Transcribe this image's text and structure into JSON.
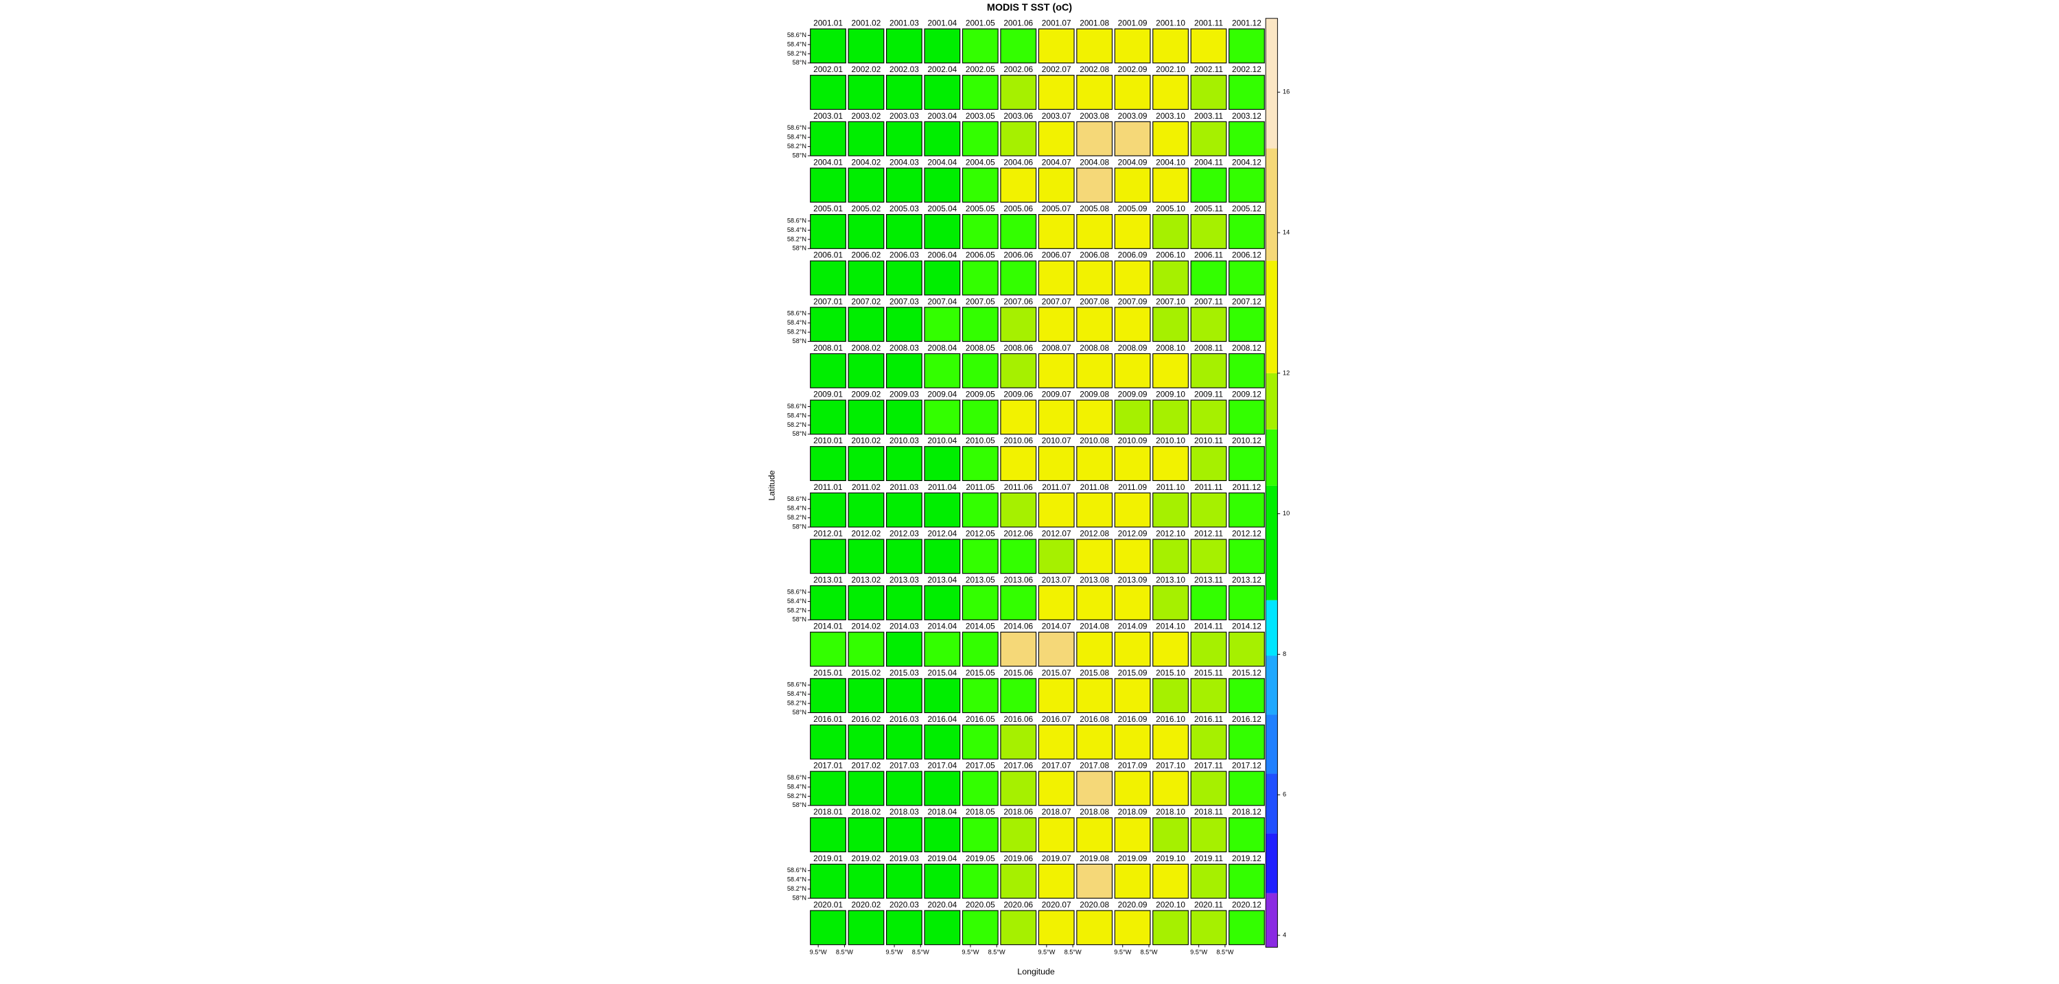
{
  "chart_data": {
    "type": "levelplot",
    "title": "MODIS T SST (oC)",
    "x_label": "Longitude",
    "y_label": "Latitude",
    "panels": [
      "2001.01",
      "2001.02",
      "2001.03",
      "2001.04",
      "2001.05",
      "2001.06",
      "2001.07",
      "2001.08",
      "2001.09",
      "2001.10",
      "2001.11",
      "2001.12",
      "2002.01",
      "2002.02",
      "2002.03",
      "2002.04",
      "2002.05",
      "2002.06",
      "2002.07",
      "2002.08",
      "2002.09",
      "2002.10",
      "2002.11",
      "2002.12",
      "2003.01",
      "2003.02",
      "2003.03",
      "2003.04",
      "2003.05",
      "2003.06",
      "2003.07",
      "2003.08",
      "2003.09",
      "2003.10",
      "2003.11",
      "2003.12",
      "2004.01",
      "2004.02",
      "2004.03",
      "2004.04",
      "2004.05",
      "2004.06",
      "2004.07",
      "2004.08",
      "2004.09",
      "2004.10",
      "2004.11",
      "2004.12",
      "2005.01",
      "2005.02",
      "2005.03",
      "2005.04",
      "2005.05",
      "2005.06",
      "2005.07",
      "2005.08",
      "2005.09",
      "2005.10",
      "2005.11",
      "2005.12",
      "2006.01",
      "2006.02",
      "2006.03",
      "2006.04",
      "2006.05",
      "2006.06",
      "2006.07",
      "2006.08",
      "2006.09",
      "2006.10",
      "2006.11",
      "2006.12",
      "2007.01",
      "2007.02",
      "2007.03",
      "2007.04",
      "2007.05",
      "2007.06",
      "2007.07",
      "2007.08",
      "2007.09",
      "2007.10",
      "2007.11",
      "2007.12",
      "2008.01",
      "2008.02",
      "2008.03",
      "2008.04",
      "2008.05",
      "2008.06",
      "2008.07",
      "2008.08",
      "2008.09",
      "2008.10",
      "2008.11",
      "2008.12",
      "2009.01",
      "2009.02",
      "2009.03",
      "2009.04",
      "2009.05",
      "2009.06",
      "2009.07",
      "2009.08",
      "2009.09",
      "2009.10",
      "2009.11",
      "2009.12",
      "2010.01",
      "2010.02",
      "2010.03",
      "2010.04",
      "2010.05",
      "2010.06",
      "2010.07",
      "2010.08",
      "2010.09",
      "2010.10",
      "2010.11",
      "2010.12",
      "2011.01",
      "2011.02",
      "2011.03",
      "2011.04",
      "2011.05",
      "2011.06",
      "2011.07",
      "2011.08",
      "2011.09",
      "2011.10",
      "2011.11",
      "2011.12",
      "2012.01",
      "2012.02",
      "2012.03",
      "2012.04",
      "2012.05",
      "2012.06",
      "2012.07",
      "2012.08",
      "2012.09",
      "2012.10",
      "2012.11",
      "2012.12",
      "2013.01",
      "2013.02",
      "2013.03",
      "2013.04",
      "2013.05",
      "2013.06",
      "2013.07",
      "2013.08",
      "2013.09",
      "2013.10",
      "2013.11",
      "2013.12",
      "2014.01",
      "2014.02",
      "2014.03",
      "2014.04",
      "2014.05",
      "2014.06",
      "2014.07",
      "2014.08",
      "2014.09",
      "2014.10",
      "2014.11",
      "2014.12",
      "2015.01",
      "2015.02",
      "2015.03",
      "2015.04",
      "2015.05",
      "2015.06",
      "2015.07",
      "2015.08",
      "2015.09",
      "2015.10",
      "2015.11",
      "2015.12",
      "2016.01",
      "2016.02",
      "2016.03",
      "2016.04",
      "2016.05",
      "2016.06",
      "2016.07",
      "2016.08",
      "2016.09",
      "2016.10",
      "2016.11",
      "2016.12",
      "2017.01",
      "2017.02",
      "2017.03",
      "2017.04",
      "2017.05",
      "2017.06",
      "2017.07",
      "2017.08",
      "2017.09",
      "2017.10",
      "2017.11",
      "2017.12",
      "2018.01",
      "2018.02",
      "2018.03",
      "2018.04",
      "2018.05",
      "2018.06",
      "2018.07",
      "2018.08",
      "2018.09",
      "2018.10",
      "2018.11",
      "2018.12",
      "2019.01",
      "2019.02",
      "2019.03",
      "2019.04",
      "2019.05",
      "2019.06",
      "2019.07",
      "2019.08",
      "2019.09",
      "2019.10",
      "2019.11",
      "2019.12",
      "2020.01",
      "2020.02",
      "2020.03",
      "2020.04",
      "2020.05",
      "2020.06",
      "2020.07",
      "2020.08",
      "2020.09",
      "2020.10",
      "2020.11",
      "2020.12"
    ],
    "values": [
      [
        10.2,
        10,
        9.6,
        10,
        10.6,
        10.8,
        12.8,
        12.6,
        12.7,
        12.5,
        12.4,
        10.6
      ],
      [
        10.2,
        10.2,
        10.1,
        10.2,
        10.5,
        11.5,
        12.8,
        12.9,
        13,
        12.5,
        11.5,
        10.5
      ],
      [
        10.3,
        10.3,
        10.2,
        10.1,
        10.4,
        11.5,
        12.8,
        13.8,
        13.9,
        12.6,
        11.4,
        10.5
      ],
      [
        10.2,
        10.3,
        10.1,
        10.2,
        10.5,
        12.6,
        12.8,
        13.8,
        13.5,
        12.5,
        10.6,
        10.5
      ],
      [
        10.2,
        10.2,
        10.2,
        10.2,
        10.5,
        10.8,
        12.8,
        12.9,
        12.8,
        11.5,
        11.5,
        10.5
      ],
      [
        10.1,
        10.1,
        10.2,
        10.2,
        10.4,
        10.8,
        12.7,
        12.8,
        12.8,
        11.5,
        10.8,
        10.4
      ],
      [
        10.2,
        10.2,
        10.2,
        10.4,
        10.6,
        11.6,
        12.8,
        12.7,
        12.8,
        11.8,
        11.6,
        10.5
      ],
      [
        10.2,
        10.2,
        10.3,
        10.4,
        10.8,
        11.6,
        12.8,
        12.9,
        12.8,
        12.4,
        11.5,
        10.5
      ],
      [
        10.2,
        10.2,
        10.2,
        10.4,
        10.6,
        12.6,
        12.8,
        12.7,
        11.6,
        11.5,
        11.4,
        10.5
      ],
      [
        10.2,
        10.2,
        10.2,
        10.2,
        10.5,
        12.5,
        12.7,
        12.9,
        12.8,
        12.4,
        11.4,
        10.5
      ],
      [
        10.3,
        10.2,
        10.2,
        10.3,
        10.6,
        11.5,
        12.7,
        12.7,
        12.6,
        11.5,
        11.5,
        10.6
      ],
      [
        10.2,
        10.1,
        10.2,
        10.2,
        10.6,
        10.8,
        11.6,
        12.7,
        12.5,
        11.5,
        11.4,
        10.6
      ],
      [
        10.2,
        10,
        10,
        10.1,
        10.4,
        10.6,
        12.5,
        12.7,
        12.6,
        11.6,
        10.6,
        10.5
      ],
      [
        10.5,
        10.4,
        10.3,
        10.4,
        10.8,
        13.8,
        13.9,
        12.7,
        12.8,
        12.4,
        11.5,
        11.4
      ],
      [
        10.2,
        10.1,
        10.2,
        10.2,
        10.5,
        10.8,
        12.6,
        12.8,
        12.9,
        11.6,
        11.5,
        10.6
      ],
      [
        10.3,
        10.2,
        10.2,
        10.3,
        10.6,
        11.5,
        12.8,
        12.9,
        12.6,
        12.5,
        11.4,
        10.6
      ],
      [
        10.3,
        10.3,
        10.3,
        10.2,
        10.6,
        11.5,
        12.7,
        13.8,
        12.6,
        12.5,
        11.5,
        10.6
      ],
      [
        10.2,
        10.1,
        10.2,
        10.2,
        10.6,
        11.5,
        12.7,
        12.8,
        12.6,
        11.5,
        11.5,
        10.6
      ],
      [
        10.3,
        10.3,
        10.3,
        10.3,
        10.8,
        11.6,
        12.8,
        13.8,
        12.7,
        12.5,
        11.5,
        10.6
      ],
      [
        10.3,
        10.3,
        10.2,
        10.2,
        10.6,
        11.5,
        12.7,
        12.8,
        12.6,
        11.6,
        11.5,
        10.6
      ]
    ],
    "xlim": [
      -9.8,
      -8.45
    ],
    "xticks": [
      {
        "value": -9.5,
        "label": "9.5°W"
      },
      {
        "value": -8.5,
        "label": "8.5°W"
      }
    ],
    "ylim": [
      58,
      58.74
    ],
    "yticks": [
      {
        "value": 58.6,
        "label": "58.6°N"
      },
      {
        "value": 58.4,
        "label": "58.4°N"
      },
      {
        "value": 58.2,
        "label": "58.2°N"
      },
      {
        "value": 58,
        "label": "58°N"
      }
    ],
    "zlim": [
      3.83,
      17.05
    ],
    "zticks": [
      4,
      6,
      8,
      10,
      12,
      14,
      16
    ],
    "levels": [
      3.83,
      4.6,
      5.45,
      6.3,
      7.14,
      7.98,
      8.77,
      10.4,
      11.2,
      12,
      13.6,
      15.2,
      17.05
    ],
    "colors": [
      "#8a2be2",
      "#2020ff",
      "#2050ff",
      "#2080ff",
      "#20a8ff",
      "#00e5ff",
      "#00ee00",
      "#33ff00",
      "#a6f000",
      "#f2f200",
      "#f5d878",
      "#fbe6c4"
    ]
  }
}
